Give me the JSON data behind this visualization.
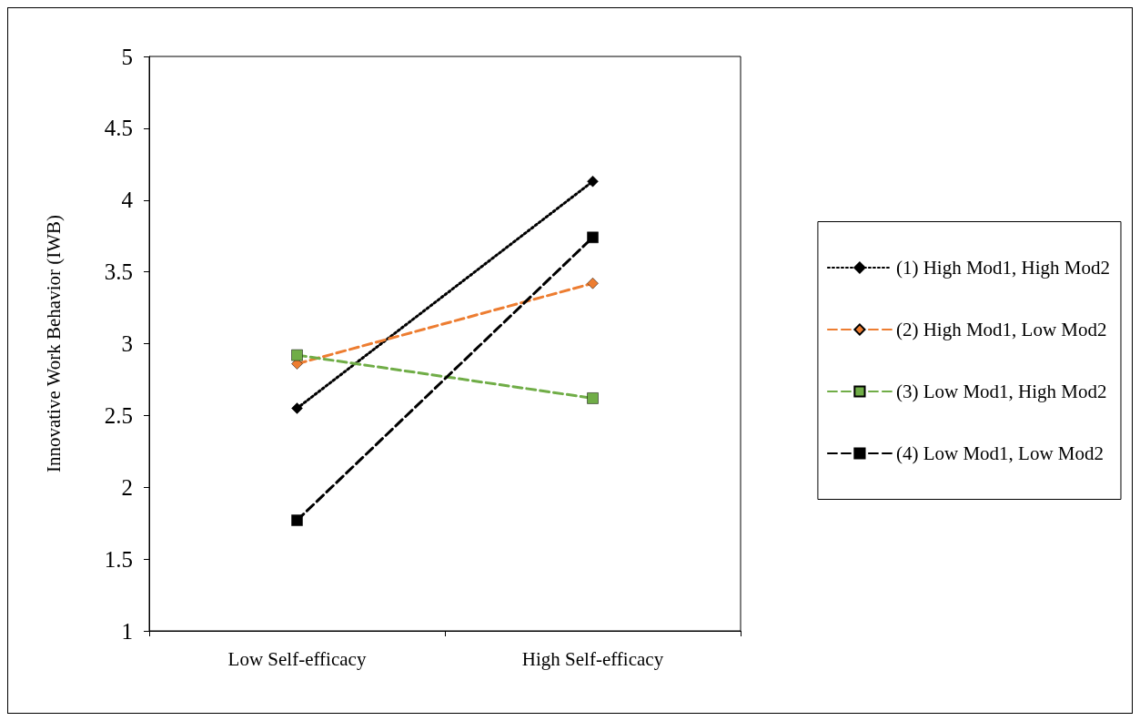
{
  "chart_data": {
    "type": "line",
    "ylabel": "Innovative Work Behavior (IWB)",
    "categories": [
      "Low Self-efficacy",
      "High Self-efficacy"
    ],
    "series": [
      {
        "name": "(1) High Mod1, High Mod2",
        "color": "#000000",
        "values": [
          2.55,
          4.13
        ],
        "marker": "diamond",
        "line_style": "dotted"
      },
      {
        "name": "(2) High Mod1, Low Mod2",
        "color": "#ed7d31",
        "values": [
          2.86,
          3.42
        ],
        "marker": "diamond",
        "line_style": "dashed"
      },
      {
        "name": "(3) Low Mod1, High Mod2",
        "color": "#70ad47",
        "values": [
          2.92,
          2.62
        ],
        "marker": "square",
        "line_style": "dashed"
      },
      {
        "name": "(4) Low Mod1, Low Mod2",
        "color": "#000000",
        "values": [
          1.77,
          3.74
        ],
        "marker": "square",
        "line_style": "dashed"
      }
    ],
    "ylim": [
      1,
      5
    ],
    "yticks": [
      1,
      1.5,
      2,
      2.5,
      3,
      3.5,
      4,
      4.5,
      5
    ],
    "grid": false,
    "legend": "right"
  }
}
